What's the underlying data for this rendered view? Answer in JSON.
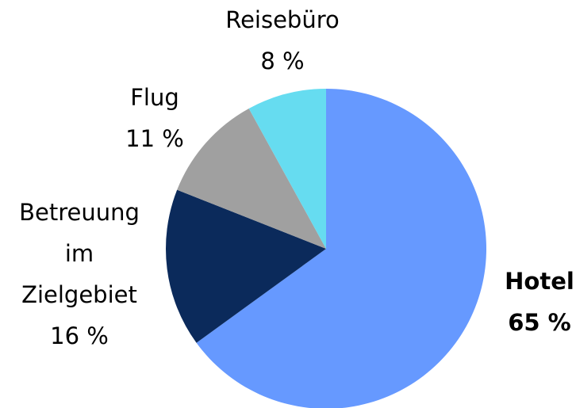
{
  "chart_data": {
    "type": "pie",
    "categories": [
      "Hotel",
      "Betreuung im Zielgebiet",
      "Flug",
      "Reisebüro"
    ],
    "values": [
      65,
      16,
      11,
      8
    ],
    "value_labels": [
      "65 %",
      "16 %",
      "11 %",
      "8 %"
    ],
    "colors": [
      "#6699ff",
      "#0b2a5b",
      "#a0a0a0",
      "#66dcf0"
    ],
    "bold": [
      true,
      false,
      false,
      false
    ]
  }
}
